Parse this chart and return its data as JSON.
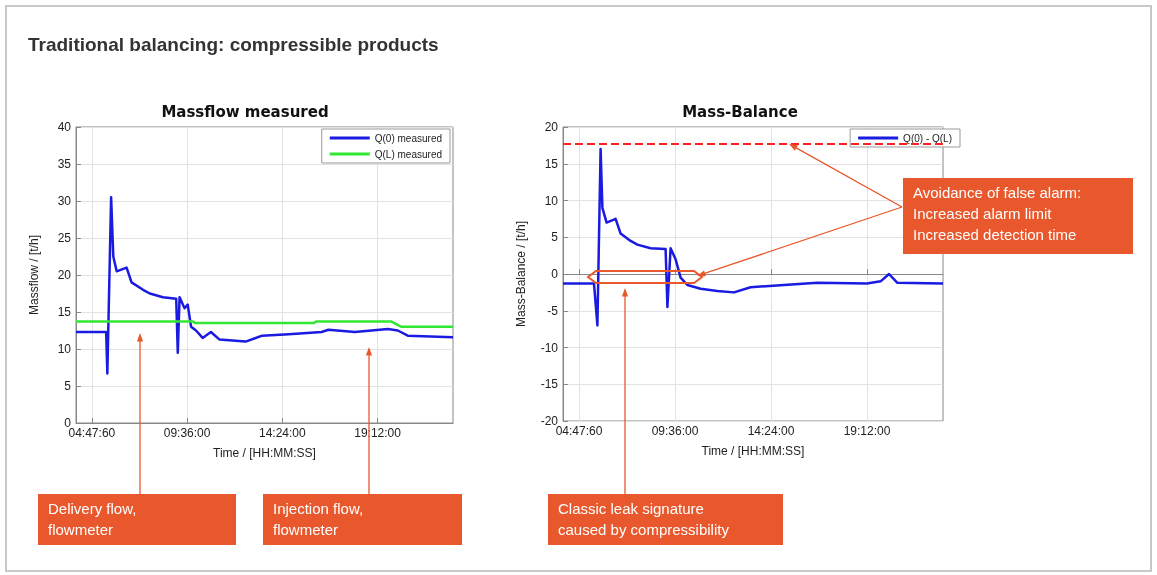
{
  "chart_data": [
    {
      "type": "line",
      "title": "Massflow measured",
      "xlabel": "Time / [HH:MM:SS]",
      "ylabel": "Massflow / [t/h]",
      "annotations": [
        "Traditional balancing: compressible products",
        "Delivery flow,\nflowmeter",
        "Injection flow,\nflowmeter"
      ],
      "series": [
        {
          "name": "Q(0) measured",
          "color": "#1a1ae0",
          "x": [
            4.0,
            5.52,
            5.58,
            5.77,
            5.88,
            6.05,
            6.55,
            6.8,
            7.38,
            7.72,
            8.38,
            9.05,
            9.13,
            9.22,
            9.47,
            9.63,
            9.8,
            10.05,
            10.38,
            10.8,
            11.22,
            12.55,
            13.38,
            14.72,
            16.38,
            16.72,
            18.05,
            19.72,
            20.22,
            20.72,
            23.0
          ],
          "values": [
            12.3,
            12.3,
            6.7,
            30.5,
            22.5,
            20.5,
            21,
            19,
            18,
            17.5,
            17,
            16.8,
            9.5,
            17,
            15.5,
            16,
            13,
            12.5,
            11.5,
            12.3,
            11.3,
            11,
            11.8,
            12,
            12.3,
            12.6,
            12.3,
            12.7,
            12.5,
            11.8,
            11.6
          ]
        },
        {
          "name": "Q(L) measured",
          "color": "#33e633",
          "x": [
            4.0,
            9.9,
            10.0,
            16.0,
            16.1,
            19.9,
            20.4,
            23.0
          ],
          "values": [
            13.7,
            13.7,
            13.5,
            13.5,
            13.7,
            13.7,
            13.0,
            13.0
          ]
        }
      ],
      "xlim": [
        4,
        23
      ],
      "xticks": [
        {
          "value": 4.8,
          "label": "04:47:60"
        },
        {
          "value": 9.6,
          "label": "09:36:00"
        },
        {
          "value": 14.4,
          "label": "14:24:00"
        },
        {
          "value": 19.2,
          "label": "19:12:00"
        }
      ],
      "ylim": [
        0,
        40
      ],
      "yticks": [
        0,
        5,
        10,
        15,
        20,
        25,
        30,
        35,
        40
      ],
      "grid": true,
      "legend": "top right"
    },
    {
      "type": "line",
      "title": "Mass-Balance",
      "xlabel": "Time / [HH:MM:SS]",
      "ylabel": "Mass-Balance / [t/h]",
      "annotations": [
        "Classic leak signature\ncaused by compressibility",
        {
          "text": "Avoidance of false alarm:\nIncreased alarm limit\nIncreased detection time",
          "x": 15.3,
          "y": 17.7
        }
      ],
      "series": [
        {
          "name": "Q(0) - Q(L)",
          "color": "#1a1ae0",
          "x": [
            4.0,
            5.55,
            5.72,
            5.88,
            5.97,
            6.18,
            6.63,
            6.88,
            7.38,
            7.72,
            8.38,
            9.13,
            9.22,
            9.38,
            9.63,
            9.88,
            10.22,
            10.88,
            11.72,
            12.55,
            13.38,
            15.05,
            16.72,
            19.2,
            19.88,
            20.3,
            20.72,
            23.0
          ],
          "values": [
            -1.3,
            -1.3,
            -7,
            17,
            9,
            7,
            7.5,
            5.5,
            4.5,
            4,
            3.5,
            3.4,
            -4.5,
            3.5,
            2,
            -0.5,
            -1.5,
            -2,
            -2.3,
            -2.5,
            -1.8,
            -1.5,
            -1.2,
            -1.3,
            -1.0,
            0,
            -1.2,
            -1.3
          ]
        }
      ],
      "ref_lines": [
        {
          "axis": "y",
          "value": 17.7,
          "color": "#ff2020",
          "line_style": "dashed"
        }
      ],
      "xlim": [
        4,
        23
      ],
      "xticks": [
        {
          "value": 4.8,
          "label": "04:47:60"
        },
        {
          "value": 9.6,
          "label": "09:36:00"
        },
        {
          "value": 14.4,
          "label": "14:24:00"
        },
        {
          "value": 19.2,
          "label": "19:12:00"
        }
      ],
      "ylim": [
        -20,
        20
      ],
      "yticks": [
        -20,
        -15,
        -10,
        -5,
        0,
        5,
        10,
        15,
        20
      ],
      "grid": true,
      "legend": "top right"
    }
  ]
}
